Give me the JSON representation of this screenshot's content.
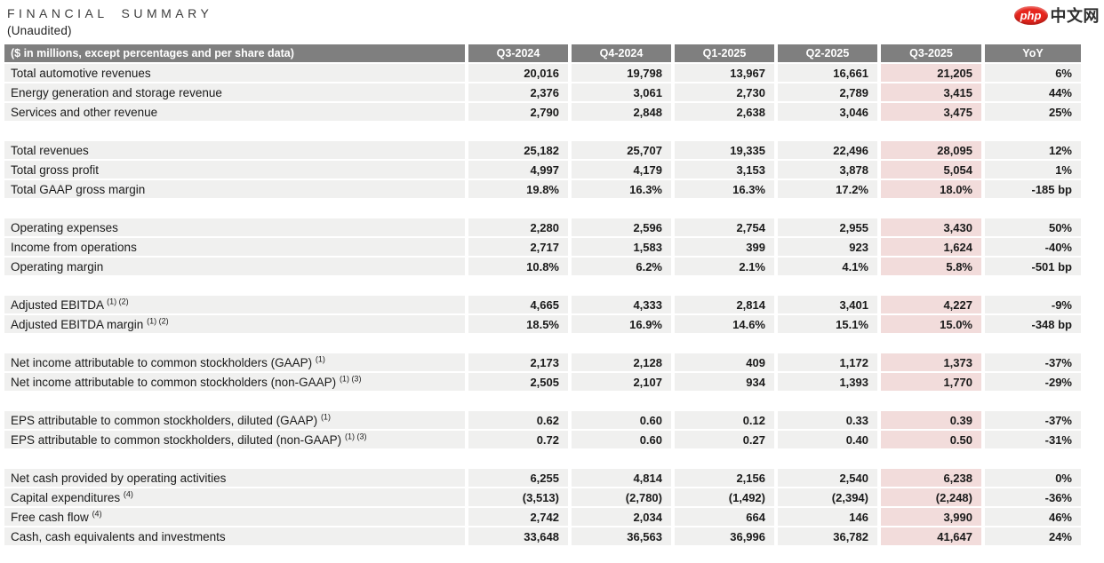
{
  "page": {
    "title": "FINANCIAL SUMMARY",
    "subtitle": "(Unaudited)"
  },
  "logo": {
    "php_text": "php",
    "cn_text": "中文网",
    "red": "#e6251d"
  },
  "table": {
    "label_header": "($ in millions, except percentages and per share data)",
    "columns": [
      "Q3-2024",
      "Q4-2024",
      "Q1-2025",
      "Q2-2025",
      "Q3-2025",
      "YoY"
    ],
    "highlight_column": "Q3-2025",
    "highlight_index": 4,
    "colors": {
      "header_bg": "#7f7f7f",
      "row_bg": "#f0f0ef",
      "highlight_bg": "#f2dcdb",
      "text": "#1a1a1a",
      "header_text": "#ffffff"
    },
    "sections": [
      {
        "rows": [
          {
            "label": "Total automotive revenues",
            "sup": "",
            "values": [
              "20,016",
              "19,798",
              "13,967",
              "16,661",
              "21,205",
              "6%"
            ]
          },
          {
            "label": "Energy generation and storage revenue",
            "sup": "",
            "values": [
              "2,376",
              "3,061",
              "2,730",
              "2,789",
              "3,415",
              "44%"
            ]
          },
          {
            "label": "Services and other revenue",
            "sup": "",
            "values": [
              "2,790",
              "2,848",
              "2,638",
              "3,046",
              "3,475",
              "25%"
            ]
          }
        ]
      },
      {
        "rows": [
          {
            "label": "Total revenues",
            "sup": "",
            "values": [
              "25,182",
              "25,707",
              "19,335",
              "22,496",
              "28,095",
              "12%"
            ]
          },
          {
            "label": "Total gross profit",
            "sup": "",
            "values": [
              "4,997",
              "4,179",
              "3,153",
              "3,878",
              "5,054",
              "1%"
            ]
          },
          {
            "label": "Total GAAP gross margin",
            "sup": "",
            "values": [
              "19.8%",
              "16.3%",
              "16.3%",
              "17.2%",
              "18.0%",
              "-185 bp"
            ]
          }
        ]
      },
      {
        "rows": [
          {
            "label": "Operating expenses",
            "sup": "",
            "values": [
              "2,280",
              "2,596",
              "2,754",
              "2,955",
              "3,430",
              "50%"
            ]
          },
          {
            "label": "Income from operations",
            "sup": "",
            "values": [
              "2,717",
              "1,583",
              "399",
              "923",
              "1,624",
              "-40%"
            ]
          },
          {
            "label": "Operating margin",
            "sup": "",
            "values": [
              "10.8%",
              "6.2%",
              "2.1%",
              "4.1%",
              "5.8%",
              "-501 bp"
            ]
          }
        ]
      },
      {
        "rows": [
          {
            "label": "Adjusted EBITDA",
            "sup": "(1) (2)",
            "values": [
              "4,665",
              "4,333",
              "2,814",
              "3,401",
              "4,227",
              "-9%"
            ]
          },
          {
            "label": "Adjusted EBITDA margin",
            "sup": "(1) (2)",
            "values": [
              "18.5%",
              "16.9%",
              "14.6%",
              "15.1%",
              "15.0%",
              "-348 bp"
            ]
          }
        ]
      },
      {
        "rows": [
          {
            "label": "Net income attributable to common stockholders (GAAP)",
            "sup": "(1)",
            "values": [
              "2,173",
              "2,128",
              "409",
              "1,172",
              "1,373",
              "-37%"
            ]
          },
          {
            "label": "Net income attributable to common stockholders (non-GAAP)",
            "sup": "(1) (3)",
            "values": [
              "2,505",
              "2,107",
              "934",
              "1,393",
              "1,770",
              "-29%"
            ]
          }
        ]
      },
      {
        "rows": [
          {
            "label": "EPS attributable to common stockholders, diluted (GAAP)",
            "sup": "(1)",
            "values": [
              "0.62",
              "0.60",
              "0.12",
              "0.33",
              "0.39",
              "-37%"
            ]
          },
          {
            "label": "EPS attributable to common stockholders, diluted (non-GAAP)",
            "sup": "(1) (3)",
            "values": [
              "0.72",
              "0.60",
              "0.27",
              "0.40",
              "0.50",
              "-31%"
            ]
          }
        ]
      },
      {
        "rows": [
          {
            "label": "Net cash provided by operating activities",
            "sup": "",
            "values": [
              "6,255",
              "4,814",
              "2,156",
              "2,540",
              "6,238",
              "0%"
            ]
          },
          {
            "label": "Capital expenditures",
            "sup": "(4)",
            "values": [
              "(3,513)",
              "(2,780)",
              "(1,492)",
              "(2,394)",
              "(2,248)",
              "-36%"
            ]
          },
          {
            "label": "Free cash flow",
            "sup": "(4)",
            "values": [
              "2,742",
              "2,034",
              "664",
              "146",
              "3,990",
              "46%"
            ]
          },
          {
            "label": "Cash, cash equivalents and investments",
            "sup": "",
            "values": [
              "33,648",
              "36,563",
              "36,996",
              "36,782",
              "41,647",
              "24%"
            ]
          }
        ]
      }
    ]
  }
}
